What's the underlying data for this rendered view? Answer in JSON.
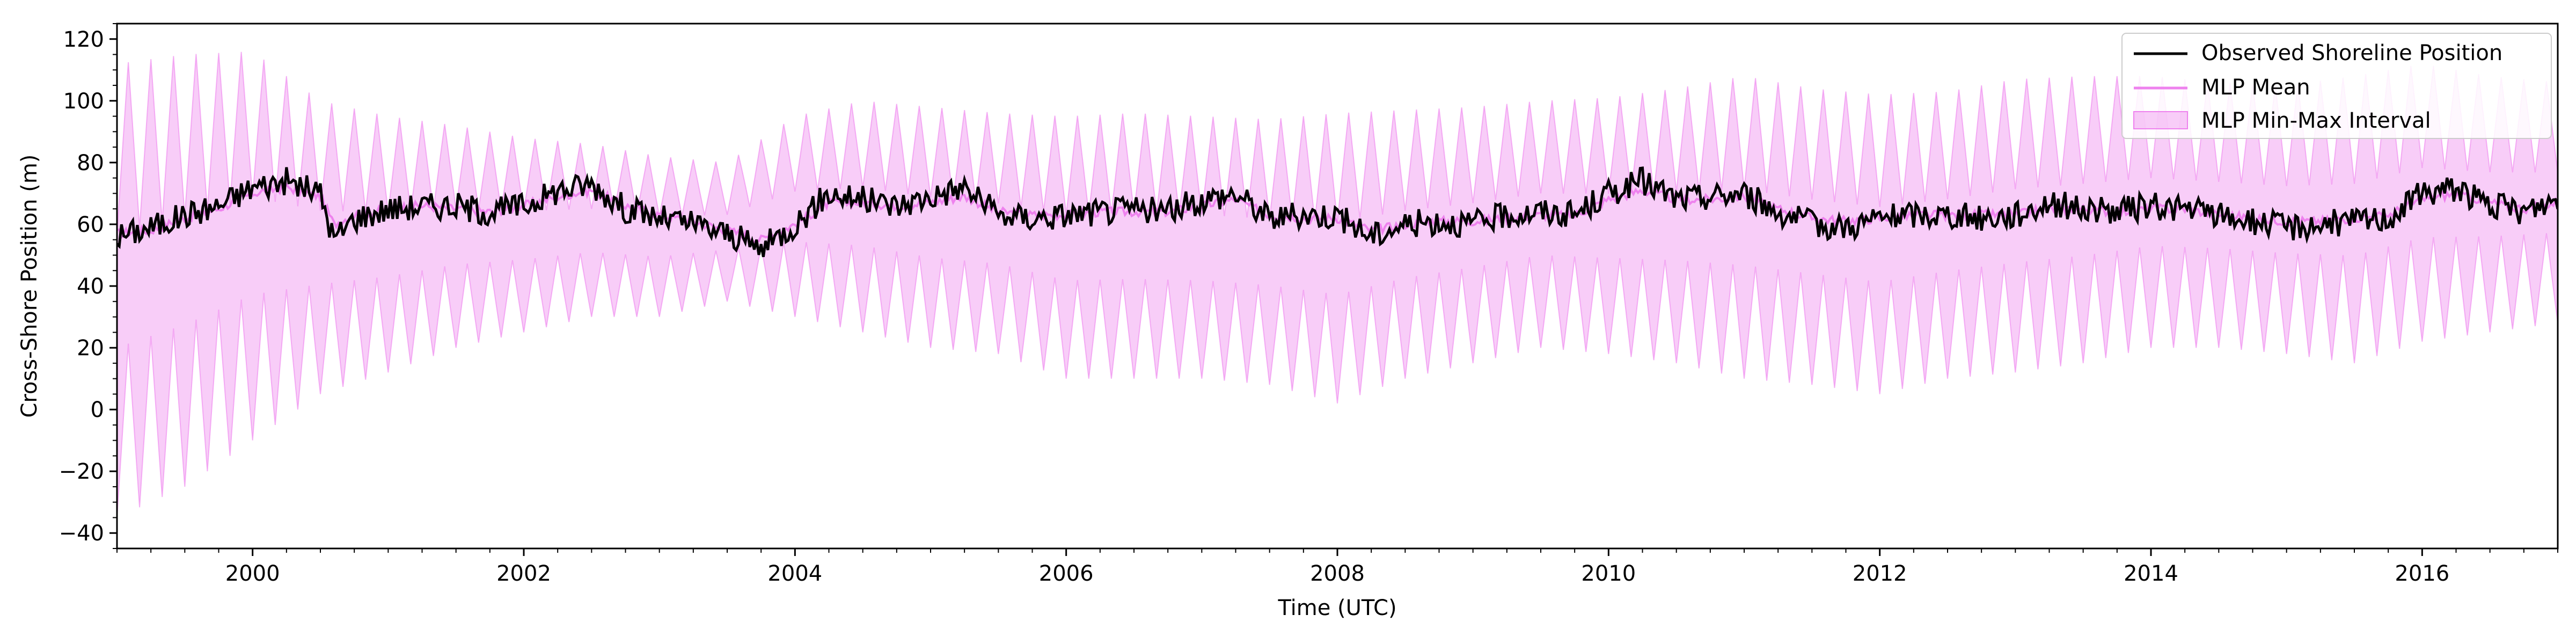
{
  "chart_data": {
    "type": "line",
    "title": "",
    "xlabel": "Time (UTC)",
    "ylabel": "Cross-Shore Position (m)",
    "xlim": [
      1999.0,
      2017.0
    ],
    "ylim": [
      -45,
      125
    ],
    "x_ticks": [
      2000,
      2002,
      2004,
      2006,
      2008,
      2010,
      2012,
      2014,
      2016
    ],
    "x_tick_labels": [
      "2000",
      "2002",
      "2004",
      "2006",
      "2008",
      "2010",
      "2012",
      "2014",
      "2016"
    ],
    "y_ticks": [
      -40,
      -20,
      0,
      20,
      40,
      60,
      80,
      100,
      120
    ],
    "y_tick_labels": [
      "−40",
      "−20",
      "0",
      "20",
      "40",
      "60",
      "80",
      "100",
      "120"
    ],
    "legend_position": "top-right",
    "grid": false,
    "series": [
      {
        "name": "Observed Shoreline Position",
        "kind": "line",
        "color": "#000000",
        "x": [
          1999.0,
          1999.25,
          1999.5,
          1999.75,
          2000.0,
          2000.25,
          2000.5,
          2000.6,
          2000.75,
          2001.0,
          2001.25,
          2001.5,
          2001.75,
          2002.0,
          2002.25,
          2002.5,
          2002.75,
          2003.0,
          2003.25,
          2003.5,
          2003.75,
          2004.0,
          2004.25,
          2004.5,
          2004.75,
          2005.0,
          2005.25,
          2005.5,
          2005.75,
          2006.0,
          2006.25,
          2006.5,
          2006.75,
          2007.0,
          2007.25,
          2007.5,
          2007.75,
          2008.0,
          2008.25,
          2008.5,
          2008.75,
          2009.0,
          2009.25,
          2009.5,
          2009.75,
          2010.0,
          2010.25,
          2010.5,
          2010.75,
          2011.0,
          2011.25,
          2011.5,
          2011.75,
          2012.0,
          2012.25,
          2012.5,
          2012.75,
          2013.0,
          2013.25,
          2013.5,
          2013.75,
          2014.0,
          2014.25,
          2014.5,
          2014.75,
          2015.0,
          2015.25,
          2015.5,
          2015.75,
          2016.0,
          2016.25,
          2016.5,
          2016.75,
          2017.0
        ],
        "values": [
          56,
          59,
          63,
          66,
          72,
          74,
          70,
          55,
          62,
          65,
          66,
          66,
          64,
          66,
          71,
          73,
          65,
          62,
          60,
          57,
          52,
          60,
          70,
          68,
          66,
          69,
          72,
          63,
          62,
          63,
          64,
          65,
          64,
          68,
          70,
          62,
          63,
          63,
          56,
          60,
          61,
          60,
          63,
          64,
          63,
          70,
          74,
          68,
          69,
          70,
          64,
          60,
          59,
          62,
          63,
          63,
          62,
          63,
          67,
          65,
          64,
          66,
          65,
          63,
          61,
          59,
          60,
          61,
          62,
          70,
          72,
          66,
          64,
          68
        ]
      },
      {
        "name": "MLP Mean",
        "kind": "line",
        "color": "#ee82ee",
        "x": [
          1999.0,
          1999.25,
          1999.5,
          1999.75,
          2000.0,
          2000.25,
          2000.5,
          2000.6,
          2000.75,
          2001.0,
          2001.25,
          2001.5,
          2001.75,
          2002.0,
          2002.25,
          2002.5,
          2002.75,
          2003.0,
          2003.25,
          2003.5,
          2003.75,
          2004.0,
          2004.25,
          2004.5,
          2004.75,
          2005.0,
          2005.25,
          2005.5,
          2005.75,
          2006.0,
          2006.25,
          2006.5,
          2006.75,
          2007.0,
          2007.25,
          2007.5,
          2007.75,
          2008.0,
          2008.25,
          2008.5,
          2008.75,
          2009.0,
          2009.25,
          2009.5,
          2009.75,
          2010.0,
          2010.25,
          2010.5,
          2010.75,
          2011.0,
          2011.25,
          2011.5,
          2011.75,
          2012.0,
          2012.25,
          2012.5,
          2012.75,
          2013.0,
          2013.25,
          2013.5,
          2013.75,
          2014.0,
          2014.25,
          2014.5,
          2014.75,
          2015.0,
          2015.25,
          2015.5,
          2015.75,
          2016.0,
          2016.25,
          2016.5,
          2016.75,
          2017.0
        ],
        "values": [
          57,
          58,
          62,
          65,
          70,
          72,
          69,
          60,
          63,
          65,
          66,
          65,
          64,
          66,
          69,
          71,
          66,
          63,
          61,
          58,
          55,
          60,
          67,
          67,
          66,
          67,
          69,
          64,
          63,
          63,
          64,
          64,
          64,
          66,
          68,
          63,
          62,
          62,
          58,
          60,
          61,
          61,
          62,
          63,
          63,
          68,
          71,
          68,
          68,
          69,
          65,
          62,
          61,
          62,
          63,
          63,
          63,
          63,
          65,
          65,
          64,
          65,
          65,
          63,
          62,
          61,
          61,
          62,
          63,
          68,
          70,
          67,
          65,
          67
        ]
      },
      {
        "name": "MLP Min-Max Interval",
        "kind": "band",
        "color": "#ee82ee",
        "opacity": 0.4,
        "oscillations_per_year": 6,
        "x": [
          1999.0,
          1999.5,
          2000.0,
          2000.5,
          2001.0,
          2001.5,
          2002.0,
          2002.5,
          2003.0,
          2003.5,
          2004.0,
          2004.5,
          2005.0,
          2005.5,
          2006.0,
          2006.5,
          2007.0,
          2007.5,
          2008.0,
          2008.5,
          2009.0,
          2009.5,
          2010.0,
          2010.5,
          2011.0,
          2011.5,
          2012.0,
          2012.5,
          2013.0,
          2013.5,
          2014.0,
          2014.5,
          2015.0,
          2015.5,
          2016.0,
          2016.5,
          2017.0
        ],
        "upper": [
          112,
          115,
          116,
          100,
          95,
          92,
          88,
          86,
          82,
          80,
          95,
          100,
          98,
          96,
          95,
          96,
          95,
          94,
          96,
          97,
          98,
          100,
          101,
          104,
          108,
          104,
          102,
          103,
          107,
          108,
          108,
          106,
          105,
          108,
          112,
          108,
          106
        ],
        "lower": [
          -35,
          -25,
          -10,
          5,
          12,
          20,
          25,
          30,
          30,
          35,
          30,
          25,
          20,
          18,
          10,
          10,
          10,
          8,
          2,
          10,
          15,
          20,
          18,
          15,
          10,
          8,
          5,
          10,
          12,
          15,
          20,
          20,
          18,
          15,
          22,
          25,
          28
        ]
      }
    ]
  }
}
